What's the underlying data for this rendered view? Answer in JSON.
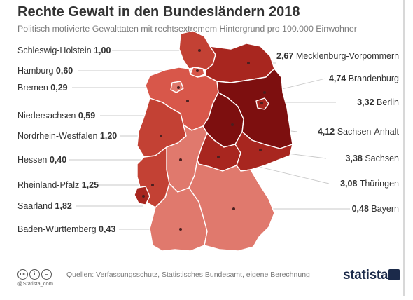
{
  "title": "Rechte Gewalt in den Bundesländern 2018",
  "subtitle": "Politisch motivierte Gewalttaten mit rechtsextremem Hintergrund pro 100.000 Einwohner",
  "colors": {
    "very_high": "#7d0f0f",
    "high": "#a8261f",
    "medium": "#c34134",
    "low": "#d8574a",
    "very_low": "#e0796d",
    "leader_line": "#c9c9c9"
  },
  "states": [
    {
      "id": "sh",
      "name": "Schleswig-Holstein",
      "value": "1,00"
    },
    {
      "id": "hh",
      "name": "Hamburg",
      "value": "0,60"
    },
    {
      "id": "hb",
      "name": "Bremen",
      "value": "0,29"
    },
    {
      "id": "ni",
      "name": "Niedersachsen",
      "value": "0,59"
    },
    {
      "id": "nw",
      "name": "Nordrhein-Westfalen",
      "value": "1,20"
    },
    {
      "id": "he",
      "name": "Hessen",
      "value": "0,40"
    },
    {
      "id": "rp",
      "name": "Rheinland-Pfalz",
      "value": "1,25"
    },
    {
      "id": "sl",
      "name": "Saarland",
      "value": "1,82"
    },
    {
      "id": "bw",
      "name": "Baden-Württemberg",
      "value": "0,43"
    },
    {
      "id": "mv",
      "name": "Mecklenburg-Vorpommern",
      "value": "2,67"
    },
    {
      "id": "bb",
      "name": "Brandenburg",
      "value": "4,74"
    },
    {
      "id": "be",
      "name": "Berlin",
      "value": "3,32"
    },
    {
      "id": "st",
      "name": "Sachsen-Anhalt",
      "value": "4,12"
    },
    {
      "id": "sn",
      "name": "Sachsen",
      "value": "3,38"
    },
    {
      "id": "th",
      "name": "Thüringen",
      "value": "3,08"
    },
    {
      "id": "by",
      "name": "Bayern",
      "value": "0,48"
    }
  ],
  "footer": {
    "handle": "@Statista_com",
    "source": "Quellen: Verfassungsschutz, Statistisches Bundesamt, eigene Berechnung",
    "logo": "statista",
    "cc_icons": [
      "cc-icon",
      "by-icon",
      "nd-icon"
    ]
  }
}
